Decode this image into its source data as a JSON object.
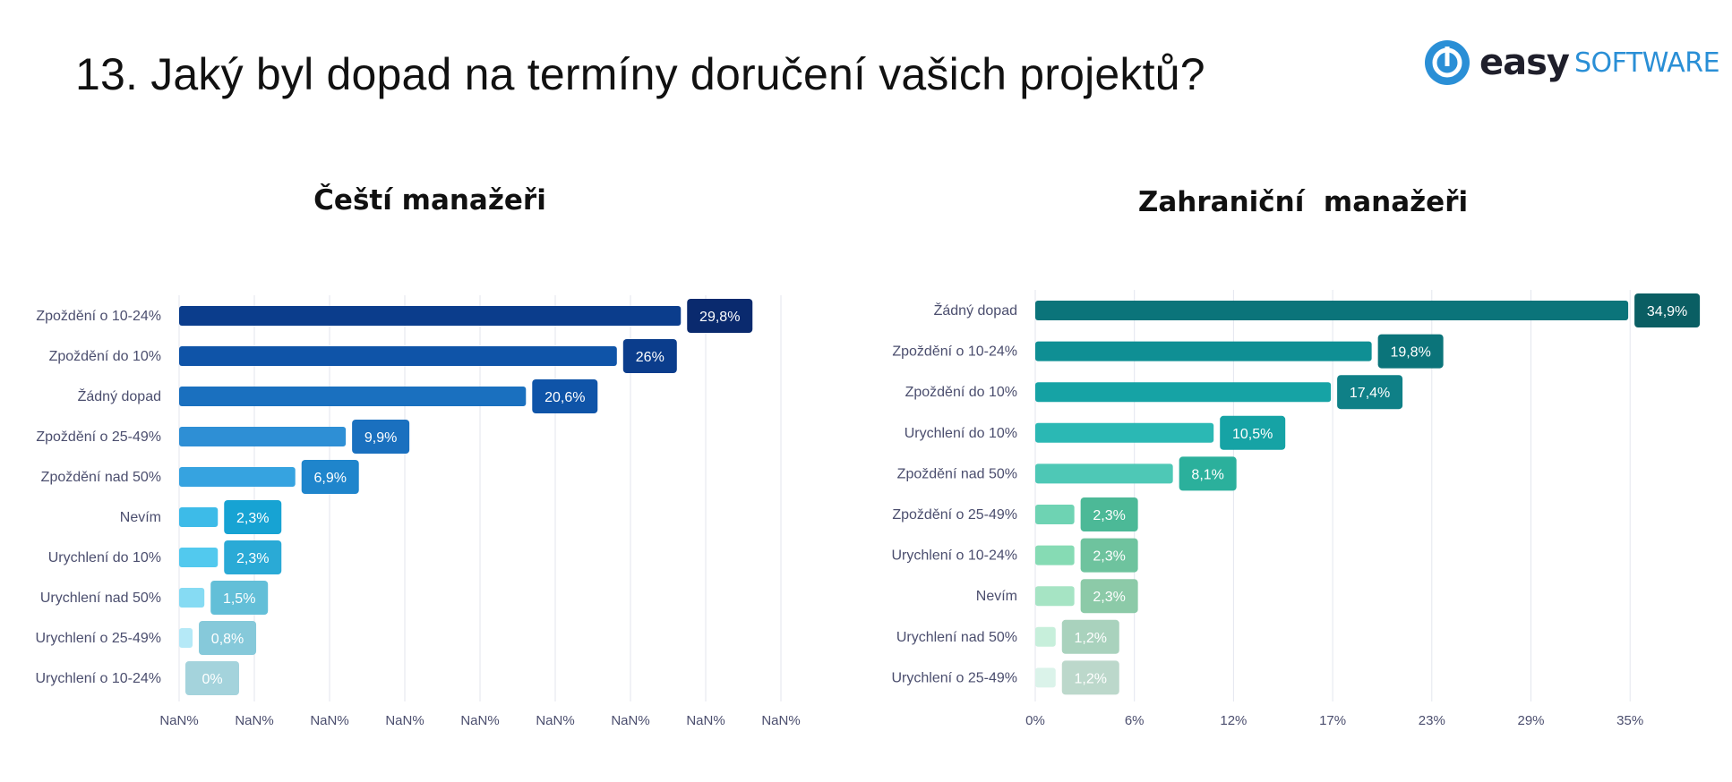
{
  "page": {
    "title": "13. Jaký byl dopad na termíny doručení vašich projektů?"
  },
  "logo": {
    "word1": "easy",
    "word2": "SOFTWARE"
  },
  "chart_data": [
    {
      "type": "bar",
      "orientation": "horizontal",
      "title": "Čeští manažeři",
      "categories": [
        "Zpoždění o 10-24%",
        "Zpoždění do 10%",
        "Žádný dopad",
        "Zpoždění o 25-49%",
        "Zpoždění nad 50%",
        "Nevím",
        "Urychlení do 10%",
        "Urychlení nad 50%",
        "Urychlení o 25-49%",
        "Urychlení o 10-24%"
      ],
      "values": [
        29.8,
        26,
        20.6,
        9.9,
        6.9,
        2.3,
        2.3,
        1.5,
        0.8,
        0
      ],
      "value_labels": [
        "29,8%",
        "26%",
        "20,6%",
        "9,9%",
        "6,9%",
        "2,3%",
        "2,3%",
        "1,5%",
        "0,8%",
        "0%"
      ],
      "x_ticks": [
        "NaN%",
        "NaN%",
        "NaN%",
        "NaN%",
        "NaN%",
        "NaN%",
        "NaN%",
        "NaN%",
        "NaN%"
      ],
      "xlim": [
        0,
        35
      ],
      "grid": true,
      "bar_colors": [
        "#0b3d8c",
        "#0f54a8",
        "#1a70bf",
        "#2e8fd5",
        "#36a3e0",
        "#3dbbe8",
        "#52c9ee",
        "#86dbf3",
        "#b5e9f7",
        "#cdeef7"
      ],
      "label_colors": [
        "#0a2a6e",
        "#0b3d8c",
        "#0f54a8",
        "#1a70bf",
        "#1f85cc",
        "#17a3d3",
        "#2aaad6",
        "#63bfd8",
        "#86c9da",
        "#a4d3dc"
      ]
    },
    {
      "type": "bar",
      "orientation": "horizontal",
      "title": "Zahraniční  manažeři",
      "categories": [
        "Žádný dopad",
        "Zpoždění o 10-24%",
        "Zpoždění do 10%",
        "Urychlení do 10%",
        "Zpoždění nad 50%",
        "Zpoždění o 25-49%",
        "Urychlení o 10-24%",
        "Nevím",
        "Urychlení nad 50%",
        "Urychlení o 25-49%"
      ],
      "values": [
        34.9,
        19.8,
        17.4,
        10.5,
        8.1,
        2.3,
        2.3,
        2.3,
        1.2,
        1.2
      ],
      "value_labels": [
        "34,9%",
        "19,8%",
        "17,4%",
        "10,5%",
        "8,1%",
        "2,3%",
        "2,3%",
        "2,3%",
        "1,2%",
        "1,2%"
      ],
      "x_ticks": [
        "0%",
        "6%",
        "12%",
        "17%",
        "23%",
        "29%",
        "35%"
      ],
      "xlim": [
        0,
        35
      ],
      "grid": true,
      "bar_colors": [
        "#0b747a",
        "#0f8f94",
        "#16a3a5",
        "#2bb8b4",
        "#4ec8b6",
        "#6ed3b3",
        "#86dbb4",
        "#a6e4c4",
        "#c7efdb",
        "#dbf3ea"
      ],
      "label_colors": [
        "#0a5e63",
        "#0b747a",
        "#0f8087",
        "#16a3a5",
        "#2bb09c",
        "#4cb997",
        "#6ec39e",
        "#8ccaa8",
        "#a9d2bd",
        "#bcd8cb"
      ]
    }
  ]
}
